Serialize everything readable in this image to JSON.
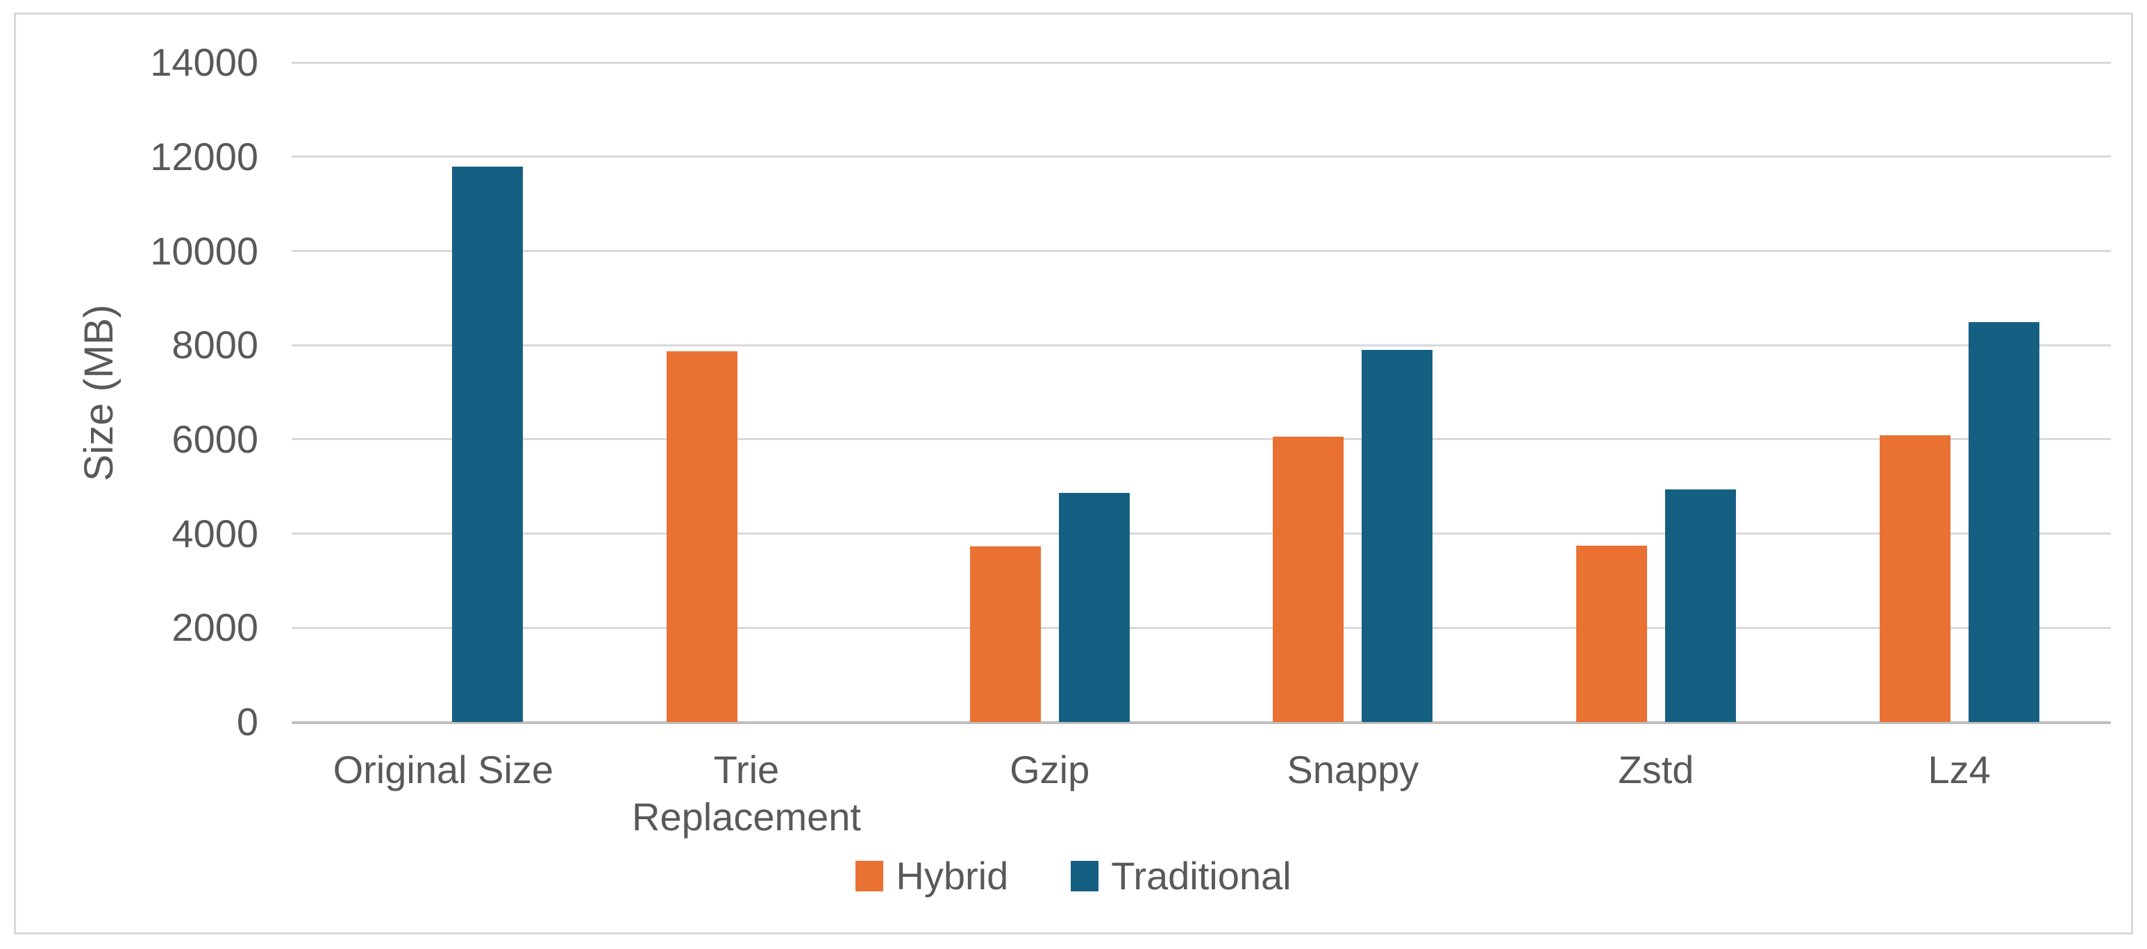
{
  "chart_data": {
    "type": "bar",
    "title": "",
    "ylabel": "Size (MB)",
    "xlabel": "",
    "categories": [
      "Original Size",
      "Trie Replacement",
      "Gzip",
      "Snappy",
      "Zstd",
      "Lz4"
    ],
    "series": [
      {
        "name": "Hybrid",
        "color": "#E97132",
        "values": [
          null,
          7870,
          3730,
          6060,
          3750,
          6080
        ]
      },
      {
        "name": "Traditional",
        "color": "#156082",
        "values": [
          11790,
          null,
          4870,
          7900,
          4940,
          8490
        ]
      }
    ],
    "ylim": [
      0,
      14000
    ],
    "ytick_step": 2000,
    "yticks": [
      0,
      2000,
      4000,
      6000,
      8000,
      10000,
      12000,
      14000
    ],
    "grid": true,
    "legend_position": "bottom-center",
    "colors": {
      "grid": "#D9D9D9",
      "axis": "#BFBFBF",
      "text": "#595959",
      "border": "#D9D9D9",
      "background": "#FFFFFF"
    }
  }
}
